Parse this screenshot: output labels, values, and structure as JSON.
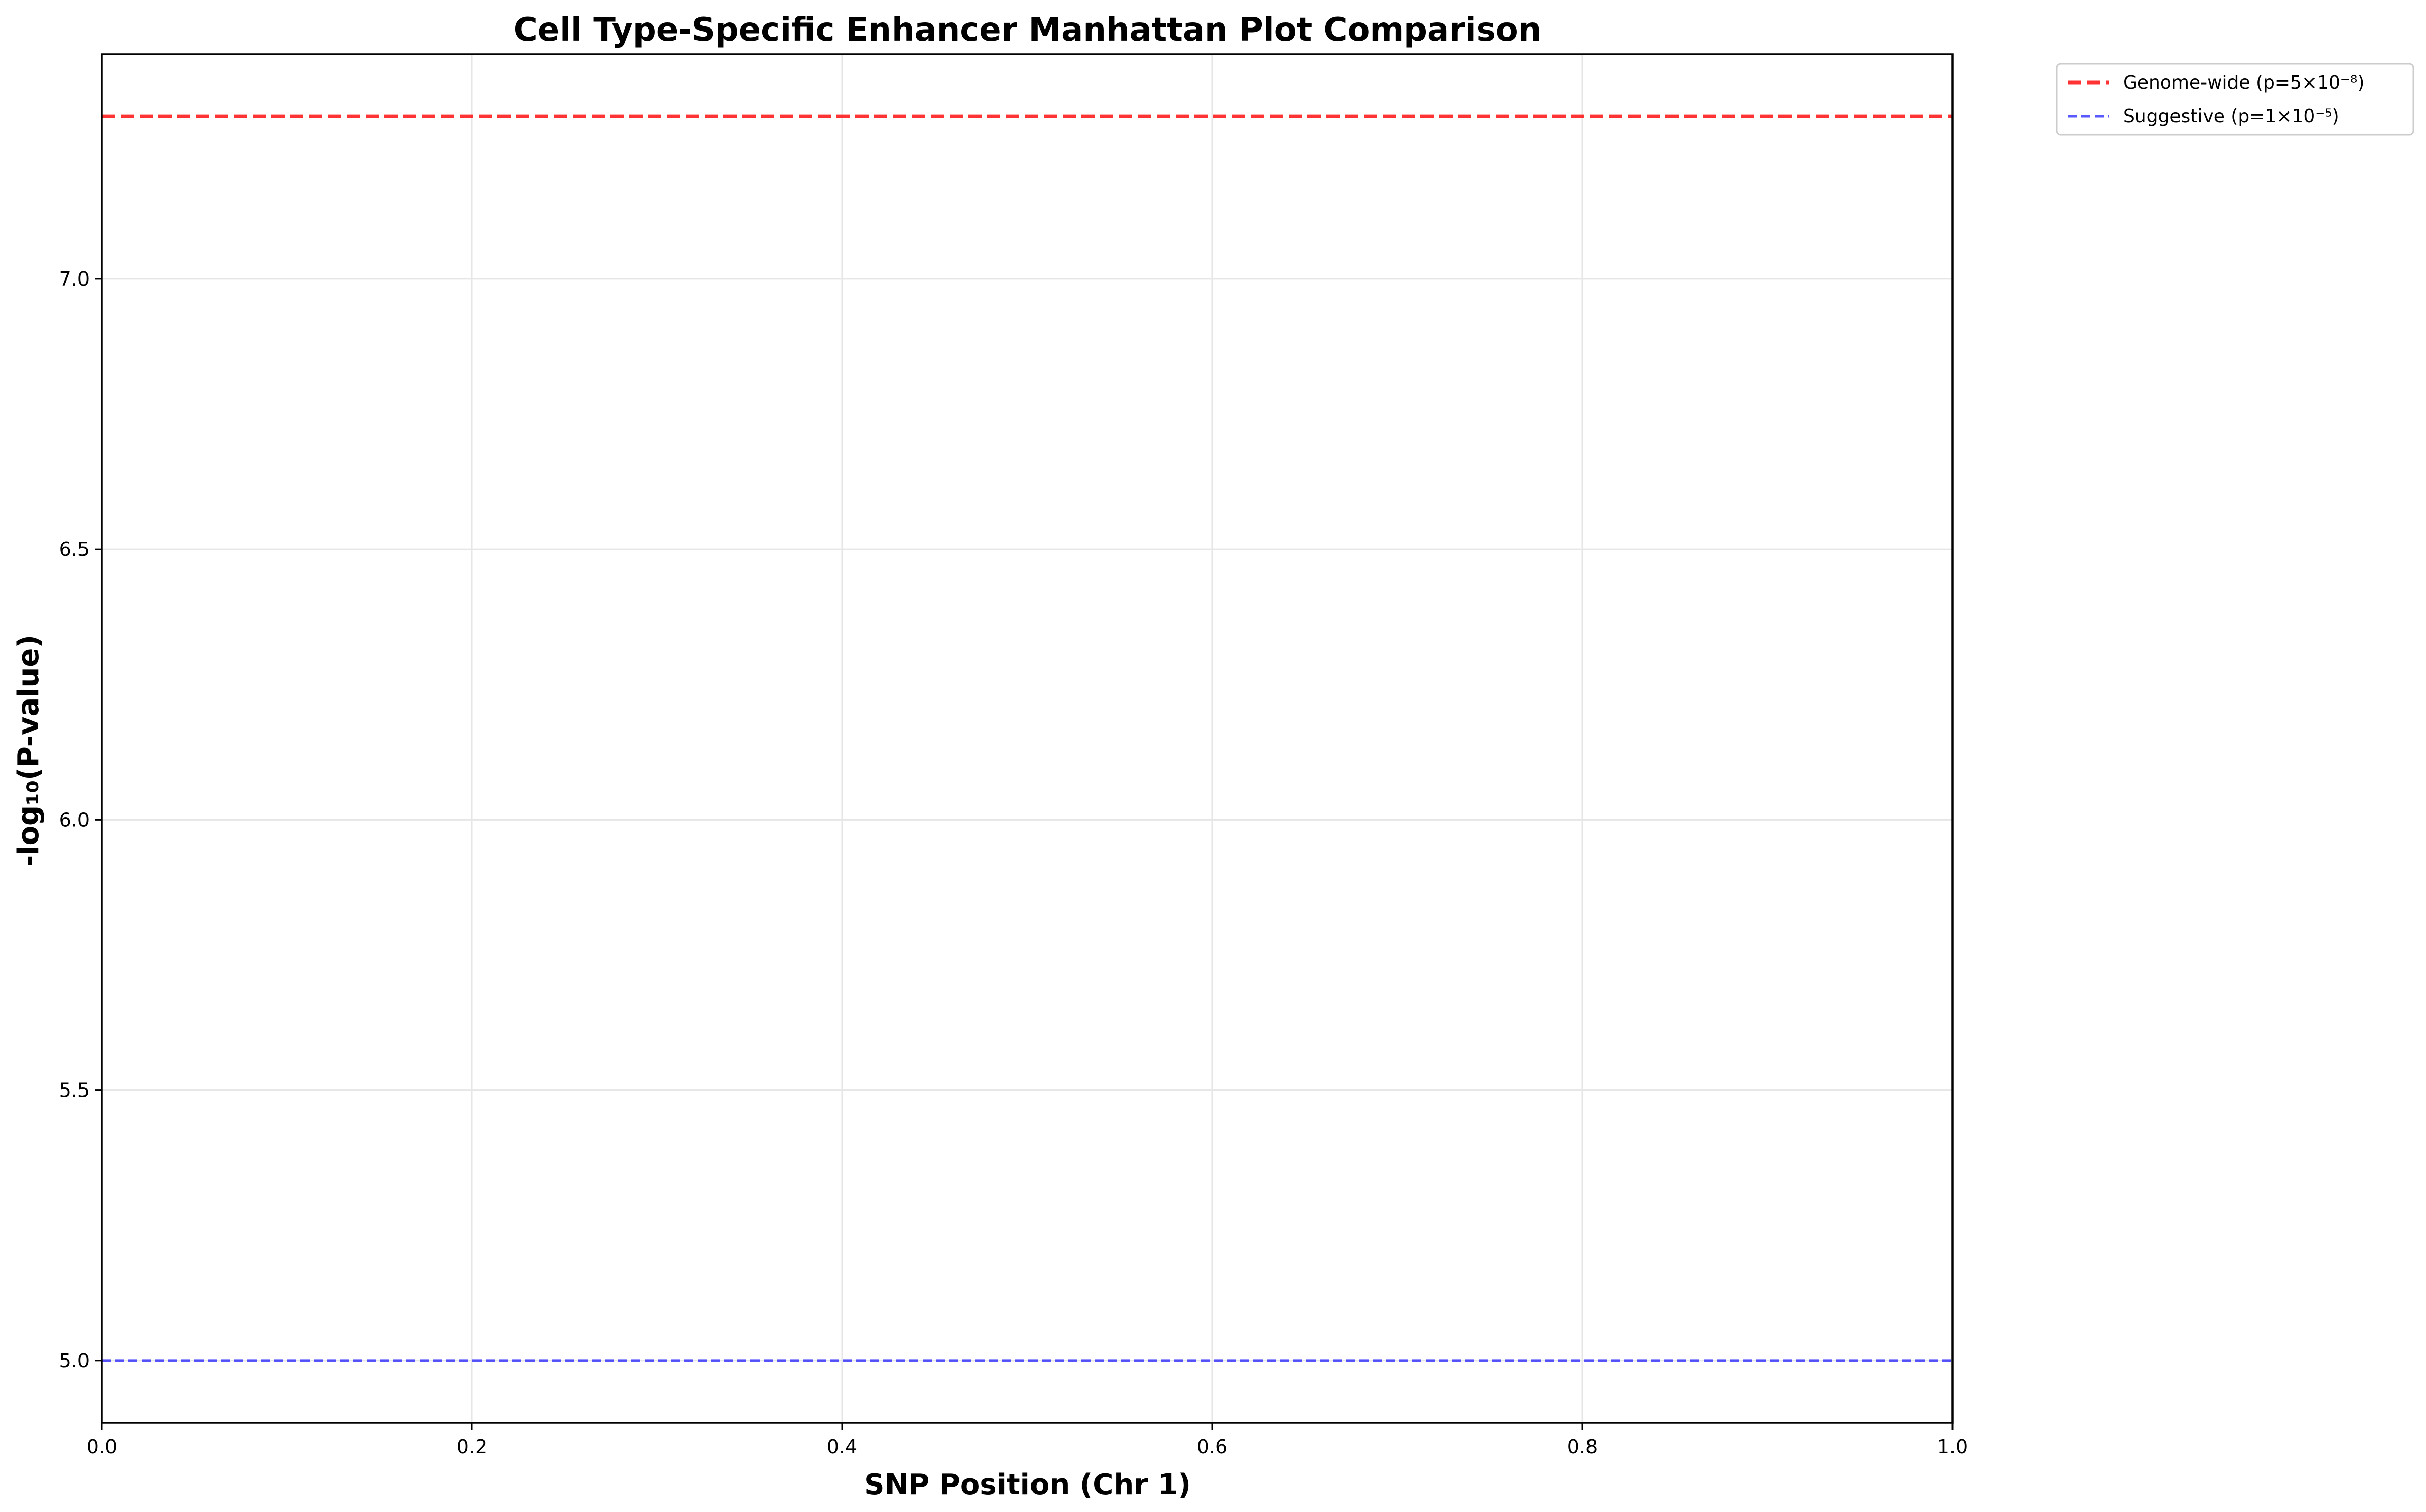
{
  "chart_data": {
    "type": "scatter",
    "title": "Cell Type-Specific Enhancer Manhattan Plot Comparison",
    "xlabel": "SNP Position (Chr 1)",
    "ylabel": "-log₁₀(P-value)",
    "xlim": [
      0.0,
      1.0
    ],
    "ylim": [
      4.885,
      7.415
    ],
    "x_ticks": [
      0.0,
      0.2,
      0.4,
      0.6,
      0.8,
      1.0
    ],
    "x_tick_labels": [
      "0.0",
      "0.2",
      "0.4",
      "0.6",
      "0.8",
      "1.0"
    ],
    "y_ticks": [
      5.0,
      5.5,
      6.0,
      6.5,
      7.0
    ],
    "y_tick_labels": [
      "5.0",
      "5.5",
      "6.0",
      "6.5",
      "7.0"
    ],
    "grid": true,
    "series": [],
    "reference_lines": [
      {
        "name": "Genome-wide (p=5×10⁻⁸)",
        "y": 7.301,
        "color": "#ff0000",
        "style": "dashed"
      },
      {
        "name": "Suggestive (p=1×10⁻⁵)",
        "y": 5.0,
        "color": "#0000ff",
        "style": "dashed"
      }
    ],
    "legend_placement": "outside-top-right"
  }
}
